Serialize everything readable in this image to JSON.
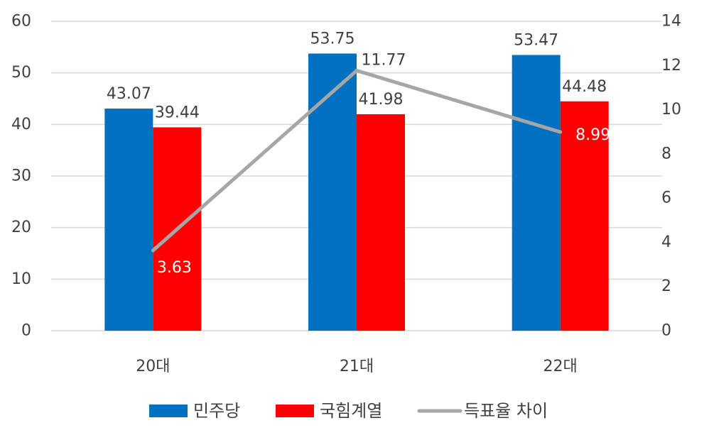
{
  "chart_data": {
    "type": "bar",
    "categories": [
      "20대",
      "21대",
      "22대"
    ],
    "series": [
      {
        "name": "민주당",
        "type": "bar",
        "axis": "left",
        "color": "#0070C0",
        "values": [
          43.07,
          53.75,
          53.47
        ]
      },
      {
        "name": "국힘계열",
        "type": "bar",
        "axis": "left",
        "color": "#FF0000",
        "values": [
          39.44,
          41.98,
          44.48
        ]
      },
      {
        "name": "득표율 차이",
        "type": "line",
        "axis": "right",
        "color": "#A6A6A6",
        "values": [
          3.63,
          11.77,
          8.99
        ]
      }
    ],
    "ylim": [
      0,
      60
    ],
    "y_ticks": [
      0,
      10,
      20,
      30,
      40,
      50,
      60
    ],
    "y2lim": [
      0,
      14
    ],
    "y2_ticks": [
      0,
      2,
      4,
      6,
      8,
      10,
      12,
      14
    ],
    "grid": true,
    "legend_position": "bottom",
    "title": "",
    "xlabel": "",
    "ylabel": ""
  }
}
